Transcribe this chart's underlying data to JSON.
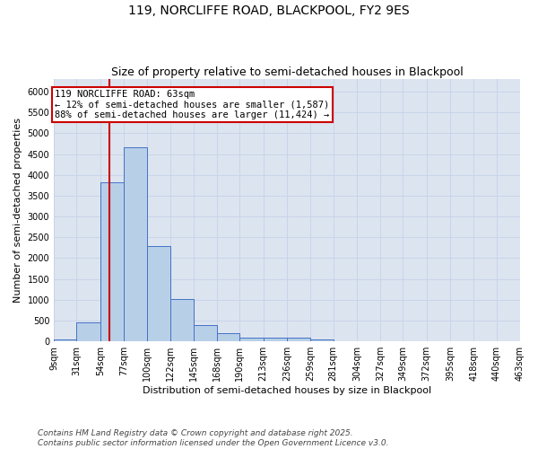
{
  "title": "119, NORCLIFFE ROAD, BLACKPOOL, FY2 9ES",
  "subtitle": "Size of property relative to semi-detached houses in Blackpool",
  "xlabel": "Distribution of semi-detached houses by size in Blackpool",
  "ylabel": "Number of semi-detached properties",
  "bin_edges": [
    9,
    31,
    54,
    77,
    100,
    122,
    145,
    168,
    190,
    213,
    236,
    259,
    281,
    304,
    327,
    349,
    372,
    395,
    418,
    440,
    463
  ],
  "bar_heights": [
    50,
    450,
    3820,
    4670,
    2300,
    1010,
    400,
    200,
    100,
    80,
    80,
    50,
    5,
    0,
    0,
    0,
    0,
    0,
    0,
    0
  ],
  "bar_color": "#b8cfe8",
  "bar_edgecolor": "#4472c4",
  "bar_linewidth": 0.7,
  "red_line_x": 63,
  "red_line_color": "#cc0000",
  "annotation_text": "119 NORCLIFFE ROAD: 63sqm\n← 12% of semi-detached houses are smaller (1,587)\n88% of semi-detached houses are larger (11,424) →",
  "annotation_box_facecolor": "#ffffff",
  "annotation_box_edgecolor": "#cc0000",
  "annotation_xleft": 9,
  "annotation_ytop": 6050,
  "ylim": [
    0,
    6300
  ],
  "yticks": [
    0,
    500,
    1000,
    1500,
    2000,
    2500,
    3000,
    3500,
    4000,
    4500,
    5000,
    5500,
    6000
  ],
  "tick_labels": [
    "9sqm",
    "31sqm",
    "54sqm",
    "77sqm",
    "100sqm",
    "122sqm",
    "145sqm",
    "168sqm",
    "190sqm",
    "213sqm",
    "236sqm",
    "259sqm",
    "281sqm",
    "304sqm",
    "327sqm",
    "349sqm",
    "372sqm",
    "395sqm",
    "418sqm",
    "440sqm",
    "463sqm"
  ],
  "grid_color": "#c8d4e8",
  "background_color": "#dce4f0",
  "footer_line1": "Contains HM Land Registry data © Crown copyright and database right 2025.",
  "footer_line2": "Contains public sector information licensed under the Open Government Licence v3.0.",
  "title_fontsize": 10,
  "subtitle_fontsize": 9,
  "axis_label_fontsize": 8,
  "tick_fontsize": 7,
  "annotation_fontsize": 7.5,
  "footer_fontsize": 6.5
}
